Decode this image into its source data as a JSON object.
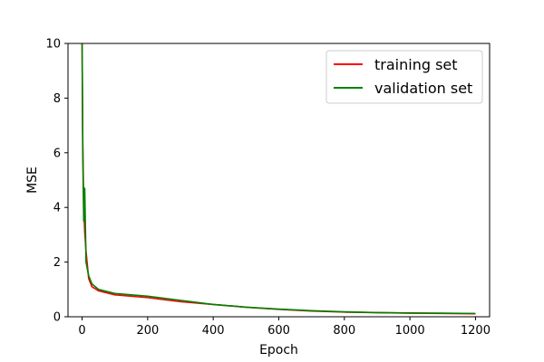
{
  "chart_data": {
    "type": "line",
    "xlabel": "Epoch",
    "ylabel": "MSE",
    "xlim": [
      -43,
      1243
    ],
    "ylim": [
      0,
      10
    ],
    "xticks": [
      0,
      200,
      400,
      600,
      800,
      1000,
      1200
    ],
    "yticks": [
      0,
      2,
      4,
      6,
      8,
      10
    ],
    "grid": false,
    "legend_position": "top-right",
    "series": [
      {
        "name": "training set",
        "color": "#ff0000",
        "x": [
          0,
          2,
          5,
          8,
          12,
          20,
          30,
          50,
          100,
          200,
          300,
          400,
          500,
          600,
          700,
          800,
          900,
          1000,
          1100,
          1200
        ],
        "y": [
          10.0,
          6.5,
          4.0,
          3.1,
          2.4,
          1.4,
          1.1,
          0.95,
          0.8,
          0.7,
          0.55,
          0.45,
          0.35,
          0.27,
          0.21,
          0.17,
          0.15,
          0.13,
          0.12,
          0.11
        ]
      },
      {
        "name": "validation set",
        "color": "#008000",
        "x": [
          0,
          2,
          5,
          8,
          12,
          20,
          30,
          50,
          100,
          200,
          300,
          400,
          500,
          600,
          700,
          800,
          900,
          1000,
          1100,
          1200
        ],
        "y": [
          10.0,
          6.0,
          3.5,
          4.7,
          2.0,
          1.5,
          1.2,
          1.0,
          0.85,
          0.75,
          0.6,
          0.45,
          0.35,
          0.28,
          0.22,
          0.18,
          0.15,
          0.14,
          0.13,
          0.12
        ]
      }
    ]
  }
}
